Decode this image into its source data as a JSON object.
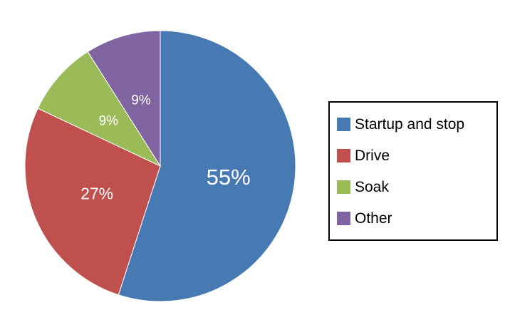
{
  "chart_data": {
    "type": "pie",
    "title": "",
    "categories": [
      "Startup and stop",
      "Drive",
      "Soak",
      "Other"
    ],
    "values": [
      55,
      27,
      9,
      9
    ],
    "labels": [
      "55%",
      "27%",
      "9%",
      "9%"
    ],
    "colors": [
      "#4779B2",
      "#C0504D",
      "#9BBB59",
      "#8064A2"
    ],
    "start_angle_deg": -90,
    "direction": "clockwise",
    "label_color": "#ffffff",
    "legend_position": "right",
    "legend_border_color": "#000000",
    "background_color": "#ffffff"
  }
}
